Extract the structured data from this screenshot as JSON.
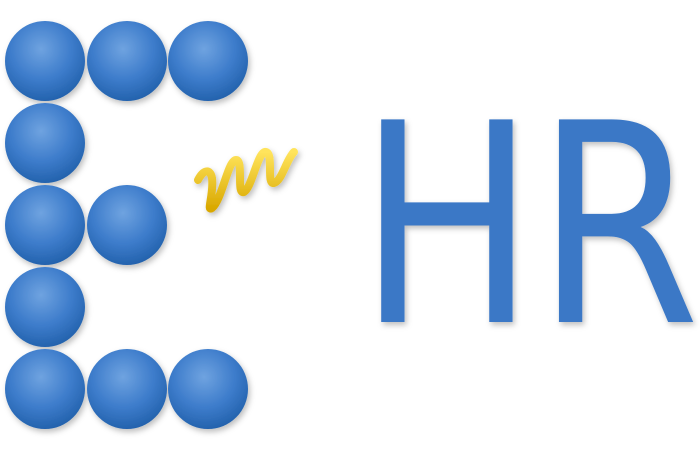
{
  "logo": {
    "text": "HR"
  }
}
